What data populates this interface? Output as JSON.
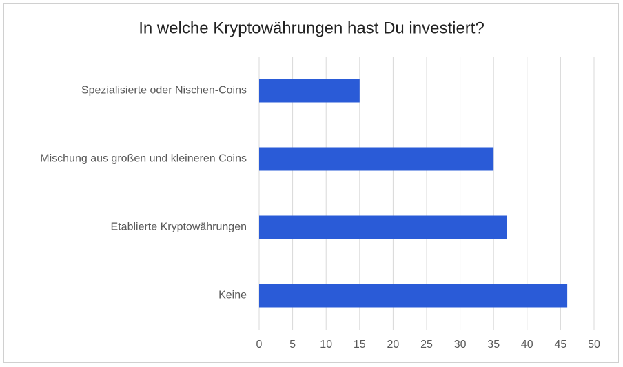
{
  "chart_data": {
    "type": "bar",
    "title": "In welche Kryptowährungen hast Du investiert?",
    "categories": [
      "Spezialisierte oder Nischen-Coins",
      "Mischung aus großen und kleineren Coins",
      "Etablierte Kryptowährungen",
      "Keine"
    ],
    "values": [
      15,
      35,
      37,
      46
    ],
    "color": "#2a5bd7",
    "xlim": [
      0,
      50
    ],
    "xticks": [
      0,
      5,
      10,
      15,
      20,
      25,
      30,
      35,
      40,
      45,
      50
    ],
    "grid": true
  }
}
